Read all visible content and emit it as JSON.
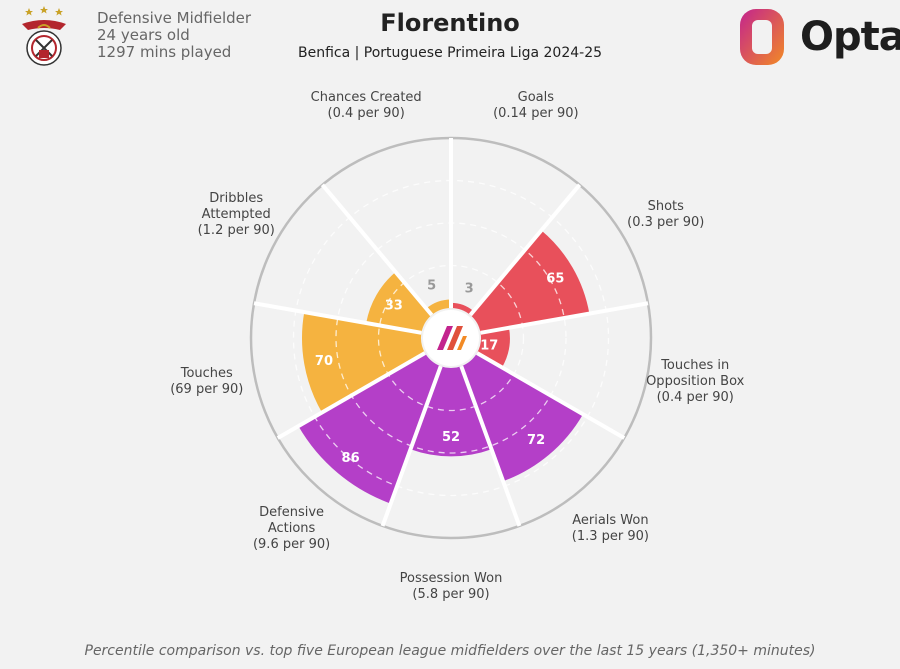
{
  "header": {
    "player_name": "Florentino",
    "subtitle": "Benfica | Portuguese Primeira Liga 2024-25",
    "position": "Defensive Midfielder",
    "age": "24 years old",
    "minutes": "1297 mins played",
    "brand": "Opta"
  },
  "footnote": "Percentile comparison vs. top five European league midfielders over the last 15 years (1,350+ minutes)",
  "colors": {
    "attacking": "#e8505b",
    "possession": "#f5b340",
    "defending": "#b43fc8",
    "background": "#f2f2f2",
    "opta_orange": "#f28a25",
    "opta_magenta": "#c3248e"
  },
  "chart_data": {
    "type": "radial-bar",
    "scale": "percentile",
    "range": [
      0,
      100
    ],
    "grid": true,
    "metrics": [
      {
        "name": "Goals",
        "detail": "(0.14 per 90)",
        "value": 3,
        "group": "attacking"
      },
      {
        "name": "Shots",
        "detail": "(0.3 per 90)",
        "value": 65,
        "group": "attacking"
      },
      {
        "name": "Touches in\nOpposition Box",
        "detail": "(0.4 per 90)",
        "value": 17,
        "group": "attacking"
      },
      {
        "name": "Aerials Won",
        "detail": "(1.3 per 90)",
        "value": 72,
        "group": "defending"
      },
      {
        "name": "Possession Won",
        "detail": "(5.8 per 90)",
        "value": 52,
        "group": "defending"
      },
      {
        "name": "Defensive\nActions",
        "detail": "(9.6 per 90)",
        "value": 86,
        "group": "defending"
      },
      {
        "name": "Touches",
        "detail": "(69 per 90)",
        "value": 70,
        "group": "possession"
      },
      {
        "name": "Dribbles\nAttempted",
        "detail": "(1.2 per 90)",
        "value": 33,
        "group": "possession"
      },
      {
        "name": "Chances Created",
        "detail": "(0.4 per 90)",
        "value": 5,
        "group": "possession"
      }
    ]
  }
}
